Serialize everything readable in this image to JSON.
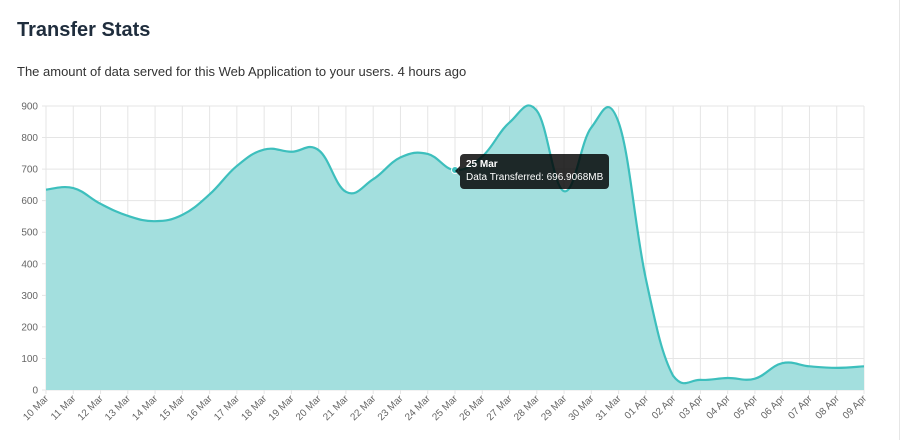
{
  "header": {
    "title": "Transfer Stats",
    "subtitle": "The amount of data served for this Web Application to your users. 4 hours ago"
  },
  "tooltip": {
    "title": "25 Mar",
    "label": "Data Transferred: 696.9068MB"
  },
  "colors": {
    "line": "#3dbfbd",
    "fill": "#a3dfde",
    "grid": "#e5e5e5"
  },
  "chart_data": {
    "type": "area",
    "title": "",
    "xlabel": "",
    "ylabel": "",
    "ylim": [
      0,
      900
    ],
    "yticks": [
      0,
      100,
      200,
      300,
      400,
      500,
      600,
      700,
      800,
      900
    ],
    "grid": true,
    "categories": [
      "10 Mar",
      "11 Mar",
      "12 Mar",
      "13 Mar",
      "14 Mar",
      "15 Mar",
      "16 Mar",
      "17 Mar",
      "18 Mar",
      "19 Mar",
      "20 Mar",
      "21 Mar",
      "22 Mar",
      "23 Mar",
      "24 Mar",
      "25 Mar",
      "26 Mar",
      "27 Mar",
      "28 Mar",
      "29 Mar",
      "30 Mar",
      "31 Mar",
      "01 Apr",
      "02 Apr",
      "03 Apr",
      "04 Apr",
      "05 Apr",
      "06 Apr",
      "07 Apr",
      "08 Apr",
      "09 Apr"
    ],
    "series": [
      {
        "values": [
          635,
          640,
          590,
          552,
          535,
          555,
          620,
          710,
          762,
          755,
          760,
          628,
          668,
          737,
          748,
          697,
          740,
          848,
          885,
          630,
          832,
          848,
          352,
          45,
          32,
          38,
          36,
          85,
          75,
          70,
          75
        ]
      }
    ]
  }
}
